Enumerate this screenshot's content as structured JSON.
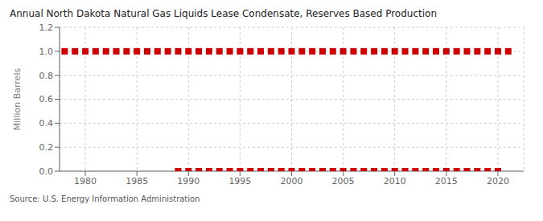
{
  "chart_data": {
    "type": "scatter",
    "title": "Annual North Dakota Natural Gas Liquids Lease Condensate, Reserves Based Production",
    "y_label": "Million Barrels",
    "annotations": [
      "Source: U.S. Energy Information Administration"
    ],
    "xlim": [
      1977.5,
      2022.5
    ],
    "xticks": [
      1980,
      1985,
      1990,
      1995,
      2000,
      2005,
      2010,
      2015,
      2020
    ],
    "ylim": [
      0.0,
      1.2
    ],
    "yticks": [
      {
        "value": 0.0,
        "label": "0.0"
      },
      0.2,
      0.4,
      0.6,
      0.8,
      {
        "value": 1.0,
        "label": "1.0"
      },
      1.2
    ],
    "grid": true,
    "series": [
      {
        "color": "#cc0000",
        "marker": "square",
        "x": [
          1978,
          1979,
          1980,
          1981,
          1982,
          1983,
          1984,
          1985,
          1986,
          1987,
          1988,
          1989,
          1990,
          1991,
          1992,
          1993,
          1994,
          1995,
          1996,
          1997,
          1998,
          1999,
          2000,
          2001,
          2002,
          2003,
          2004,
          2005,
          2006,
          2007,
          2008,
          2009,
          2010,
          2011,
          2012,
          2013,
          2014,
          2015,
          2016,
          2017,
          2018,
          2019,
          2020,
          2021
        ],
        "values": [
          1.0,
          1.0,
          1.0,
          1.0,
          1.0,
          1.0,
          1.0,
          1.0,
          1.0,
          1.0,
          1.0,
          1.0,
          1.0,
          1.0,
          1.0,
          1.0,
          1.0,
          1.0,
          1.0,
          1.0,
          1.0,
          1.0,
          1.0,
          1.0,
          1.0,
          1.0,
          1.0,
          1.0,
          1.0,
          1.0,
          1.0,
          1.0,
          1.0,
          1.0,
          1.0,
          1.0,
          1.0,
          1.0,
          1.0,
          1.0,
          1.0,
          1.0,
          1.0,
          1.0
        ]
      },
      {
        "color": "#cc0000",
        "marker": "square",
        "x": [
          1989,
          1990,
          1991,
          1992,
          1993,
          1994,
          1995,
          1996,
          1997,
          1998,
          1999,
          2000,
          2001,
          2002,
          2003,
          2004,
          2005,
          2006,
          2007,
          2008,
          2009,
          2010,
          2011,
          2012,
          2013,
          2014,
          2015,
          2016,
          2017,
          2018,
          2019,
          2020
        ],
        "values": [
          0.0,
          0.0,
          0.0,
          0.0,
          0.0,
          0.0,
          0.0,
          0.0,
          0.0,
          0.0,
          0.0,
          0.0,
          0.0,
          0.0,
          0.0,
          0.0,
          0.0,
          0.0,
          0.0,
          0.0,
          0.0,
          0.0,
          0.0,
          0.0,
          0.0,
          0.0,
          0.0,
          0.0,
          0.0,
          0.0,
          0.0,
          0.0
        ]
      }
    ]
  }
}
